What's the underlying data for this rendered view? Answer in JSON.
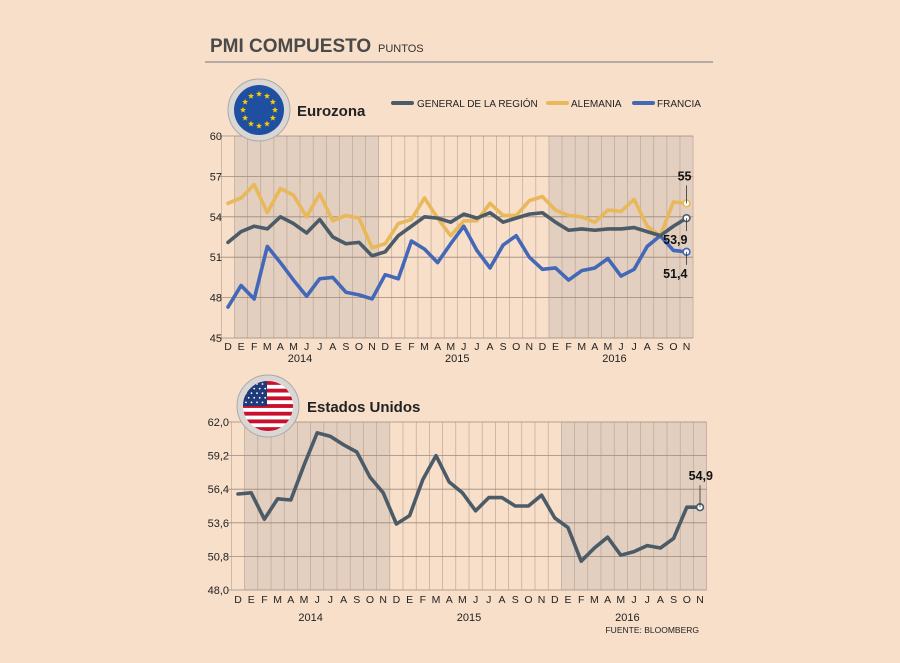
{
  "header": {
    "title": "PMI COMPUESTO",
    "subtitle": "PUNTOS"
  },
  "source": "FUENTE: BLOOMBERG",
  "colors": {
    "general": "#4b5b67",
    "alemania": "#e8b85a",
    "francia": "#4468b8",
    "background": "#f8dfc9",
    "shade": "#e3cfbf"
  },
  "chart_data": [
    {
      "type": "line",
      "title": "Eurozona",
      "emblem": "eu-flag",
      "x": [
        "D",
        "E",
        "F",
        "M",
        "A",
        "M",
        "J",
        "J",
        "A",
        "S",
        "O",
        "N",
        "D",
        "E",
        "F",
        "M",
        "A",
        "M",
        "J",
        "J",
        "A",
        "S",
        "O",
        "N",
        "D",
        "E",
        "F",
        "M",
        "A",
        "M",
        "J",
        "J",
        "A",
        "S",
        "O",
        "N"
      ],
      "years": [
        {
          "label": "2014",
          "index": 6
        },
        {
          "label": "2015",
          "index": 18
        },
        {
          "label": "2016",
          "index": 30
        }
      ],
      "shaded_ranges": [
        [
          1,
          12
        ],
        [
          25,
          36
        ]
      ],
      "ylim": [
        45,
        60
      ],
      "yticks": [
        "45",
        "48",
        "51",
        "54",
        "57",
        "60"
      ],
      "legend": [
        "GENERAL DE LA REGIÓN",
        "ALEMANIA",
        "FRANCIA"
      ],
      "series": [
        {
          "name": "GENERAL DE LA REGIÓN",
          "color": "#4b5b67",
          "values": [
            52.1,
            52.9,
            53.3,
            53.1,
            54.0,
            53.5,
            52.8,
            53.8,
            52.5,
            52.0,
            52.1,
            51.1,
            51.4,
            52.6,
            53.3,
            54.0,
            53.9,
            53.6,
            54.2,
            53.9,
            54.3,
            53.6,
            53.9,
            54.2,
            54.3,
            53.6,
            53.0,
            53.1,
            53.0,
            53.1,
            53.1,
            53.2,
            52.9,
            52.6,
            53.3,
            53.9
          ],
          "end_label": "53,9"
        },
        {
          "name": "ALEMANIA",
          "color": "#e8b85a",
          "values": [
            55.0,
            55.4,
            56.4,
            54.3,
            56.1,
            55.6,
            54.0,
            55.7,
            53.7,
            54.1,
            53.9,
            51.7,
            52.0,
            53.5,
            53.8,
            55.4,
            53.9,
            52.6,
            53.7,
            53.7,
            55.0,
            54.1,
            54.1,
            55.2,
            55.5,
            54.5,
            54.1,
            54.0,
            53.6,
            54.5,
            54.4,
            55.3,
            53.3,
            52.6,
            55.1,
            55.0
          ],
          "end_label": "55"
        },
        {
          "name": "FRANCIA",
          "color": "#4468b8",
          "values": [
            47.3,
            48.9,
            47.9,
            51.8,
            50.6,
            49.3,
            48.1,
            49.4,
            49.5,
            48.4,
            48.2,
            47.9,
            49.7,
            49.4,
            52.2,
            51.6,
            50.6,
            52.0,
            53.3,
            51.5,
            50.2,
            51.9,
            52.6,
            51.0,
            50.1,
            50.2,
            49.3,
            50.0,
            50.2,
            50.9,
            49.6,
            50.1,
            51.8,
            52.6,
            51.5,
            51.4
          ],
          "end_label": "51,4"
        }
      ]
    },
    {
      "type": "line",
      "title": "Estados Unidos",
      "emblem": "us-flag",
      "x": [
        "D",
        "E",
        "F",
        "M",
        "A",
        "M",
        "J",
        "J",
        "A",
        "S",
        "O",
        "N",
        "D",
        "E",
        "F",
        "M",
        "A",
        "M",
        "J",
        "J",
        "A",
        "S",
        "O",
        "N",
        "D",
        "E",
        "F",
        "M",
        "A",
        "M",
        "J",
        "J",
        "A",
        "S",
        "O",
        "N"
      ],
      "years": [
        {
          "label": "2014",
          "index": 6
        },
        {
          "label": "2015",
          "index": 18
        },
        {
          "label": "2016",
          "index": 30
        }
      ],
      "shaded_ranges": [
        [
          1,
          12
        ],
        [
          25,
          36
        ]
      ],
      "ylim": [
        48.0,
        62.0
      ],
      "yticks": [
        "48,0",
        "50,8",
        "53,6",
        "56,4",
        "59,2",
        "62,0"
      ],
      "series": [
        {
          "name": "GENERAL DE LA REGIÓN",
          "color": "#4b5b67",
          "values": [
            56.0,
            56.1,
            53.9,
            55.6,
            55.5,
            58.4,
            61.1,
            60.8,
            60.1,
            59.5,
            57.4,
            56.1,
            53.5,
            54.2,
            57.2,
            59.2,
            57.0,
            56.1,
            54.6,
            55.7,
            55.7,
            55.0,
            55.0,
            55.9,
            54.0,
            53.2,
            50.4,
            51.5,
            52.4,
            50.9,
            51.2,
            51.7,
            51.5,
            52.3,
            54.9,
            54.9
          ],
          "end_label": "54,9"
        }
      ]
    }
  ]
}
